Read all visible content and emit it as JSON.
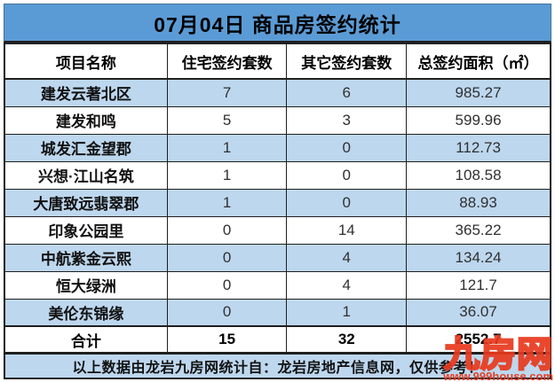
{
  "title": "07月04日 商品房签约统计",
  "table": {
    "headers": [
      "项目名称",
      "住宅签约套数",
      "其它签约套数",
      "总签约面积（㎡）"
    ],
    "rows": [
      {
        "name": "建发云著北区",
        "residential": "7",
        "other": "6",
        "area": "985.27"
      },
      {
        "name": "建发和鸣",
        "residential": "5",
        "other": "3",
        "area": "599.96"
      },
      {
        "name": "城发汇金望郡",
        "residential": "1",
        "other": "0",
        "area": "112.73"
      },
      {
        "name": "兴想·江山名筑",
        "residential": "1",
        "other": "0",
        "area": "108.58"
      },
      {
        "name": "大唐致远翡翠郡",
        "residential": "1",
        "other": "0",
        "area": "88.93"
      },
      {
        "name": "印象公园里",
        "residential": "0",
        "other": "14",
        "area": "365.22"
      },
      {
        "name": "中航紫金云熙",
        "residential": "0",
        "other": "4",
        "area": "134.24"
      },
      {
        "name": "恒大绿洲",
        "residential": "0",
        "other": "4",
        "area": "121.7"
      },
      {
        "name": "美伦东锦缘",
        "residential": "0",
        "other": "1",
        "area": "36.07"
      }
    ],
    "total": {
      "label": "合计",
      "residential": "15",
      "other": "32",
      "area": "2552.7"
    }
  },
  "footer_note": "以上数据由龙岩九房网统计自：龙岩房地产信息网，仅供参考！",
  "watermark": {
    "name": "九房网",
    "url": "www.999house.com"
  },
  "colors": {
    "title_bg": "#5b9bd5",
    "row_alt_bg": "#bdd7ee",
    "border": "#1f1f1f",
    "watermark_red": "#e8391d"
  }
}
